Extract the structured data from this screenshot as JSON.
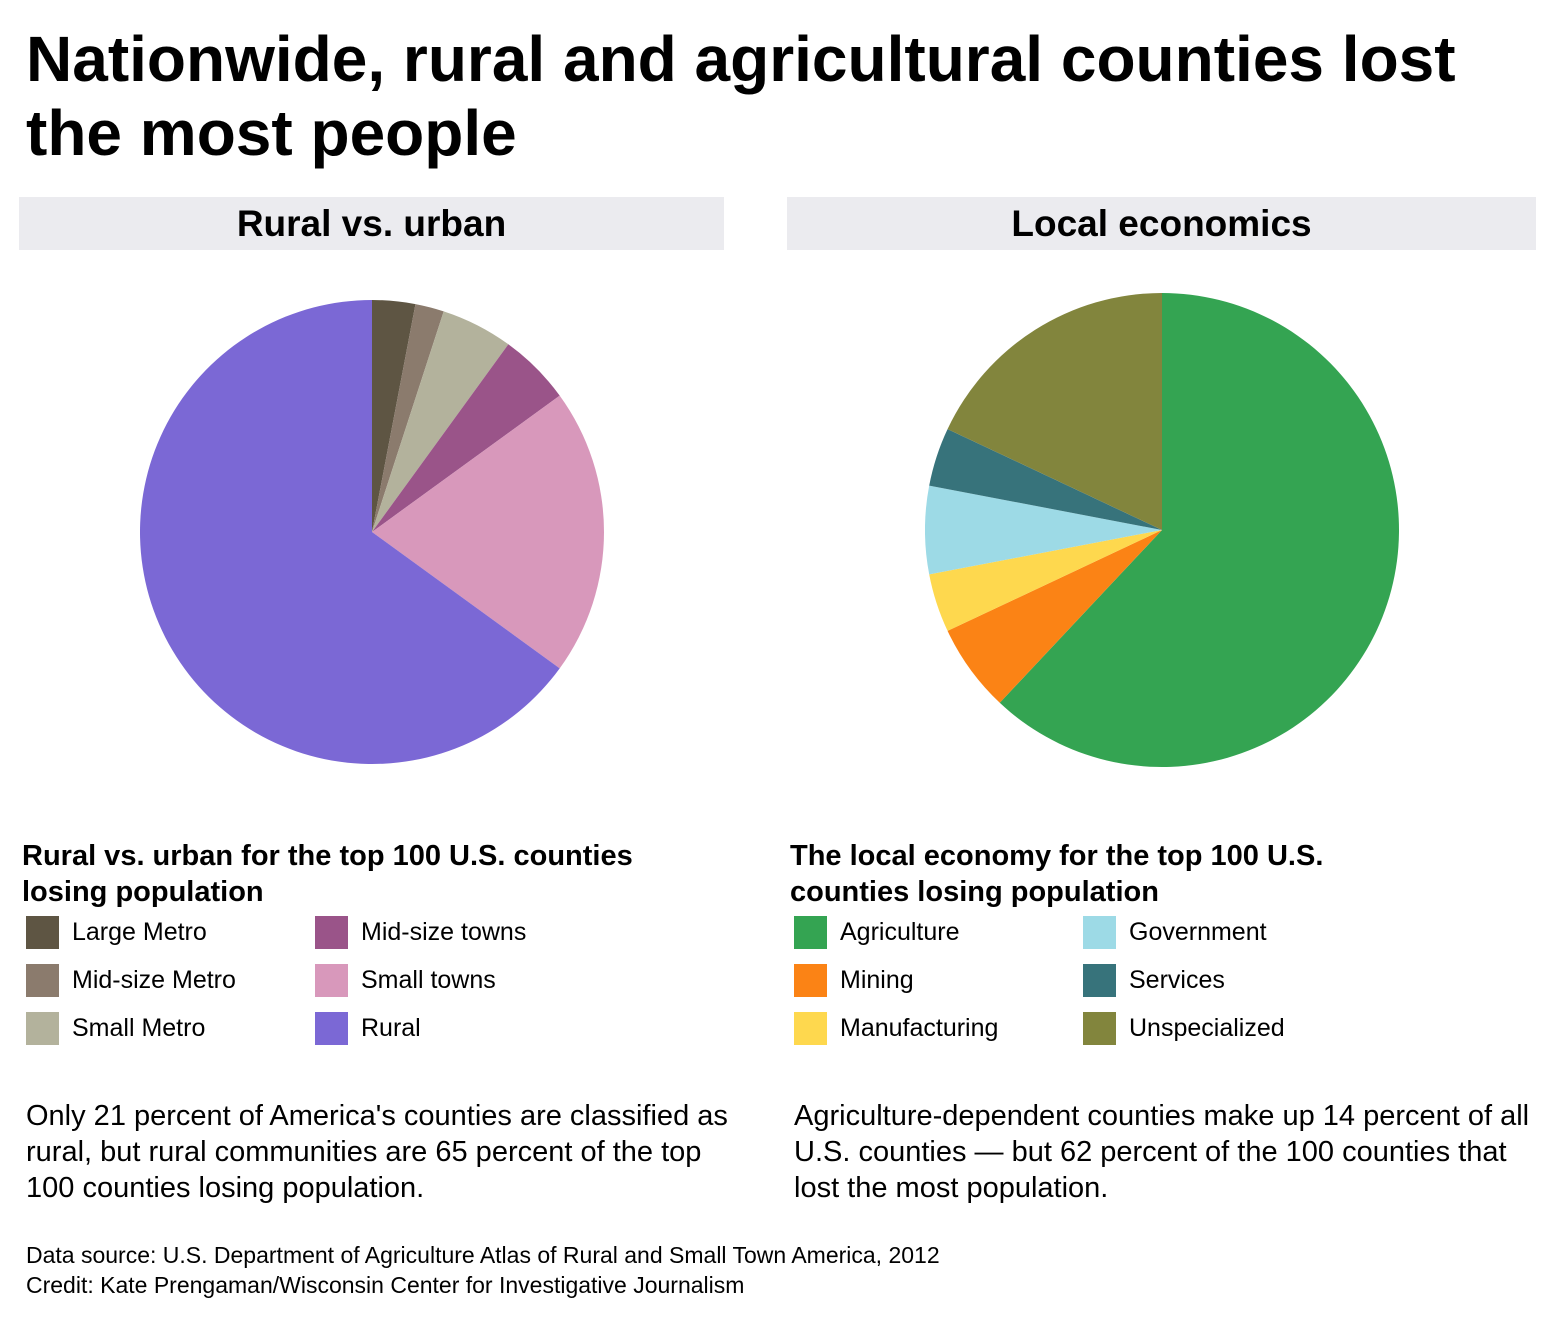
{
  "title": "Nationwide, rural and agricultural counties lost the most people",
  "chart_data": [
    {
      "type": "pie",
      "title": "Rural vs. urban",
      "legend_title": "Rural vs. urban for the top 100 U.S. counties losing population",
      "legend_placement": "bottom",
      "slices": [
        {
          "label": "Large Metro",
          "value": 3,
          "color": "#5e5543"
        },
        {
          "label": "Mid-size Metro",
          "value": 2,
          "color": "#8b7b6d"
        },
        {
          "label": "Small Metro",
          "value": 5,
          "color": "#b3b29c"
        },
        {
          "label": "Mid-size towns",
          "value": 5,
          "color": "#9a5489"
        },
        {
          "label": "Small towns",
          "value": 20,
          "color": "#d898bb"
        },
        {
          "label": "Rural",
          "value": 65,
          "color": "#7b68d5"
        }
      ],
      "note": "Only 21 percent of America's counties are classified as rural, but rural communities are 65 percent of the top 100 counties losing population."
    },
    {
      "type": "pie",
      "title": "Local economics",
      "legend_title": "The local economy for the top 100 U.S. counties losing population",
      "legend_placement": "bottom",
      "slices": [
        {
          "label": "Agriculture",
          "value": 62,
          "color": "#34a452"
        },
        {
          "label": "Mining",
          "value": 6,
          "color": "#fb8315"
        },
        {
          "label": "Manufacturing",
          "value": 4,
          "color": "#fed84e"
        },
        {
          "label": "Government",
          "value": 6,
          "color": "#9ddae6"
        },
        {
          "label": "Services",
          "value": 4,
          "color": "#37737b"
        },
        {
          "label": "Unspecialized",
          "value": 18,
          "color": "#82853d"
        }
      ],
      "note": "Agriculture-dependent counties make up 14 percent of all U.S. counties — but 62 percent of the 100 counties that lost the most population."
    }
  ],
  "footer": {
    "source": "Data source: U.S. Department of Agriculture Atlas of Rural and Small Town America, 2012",
    "credit": "Credit: Kate Prengaman/Wisconsin Center for Investigative Journalism"
  }
}
